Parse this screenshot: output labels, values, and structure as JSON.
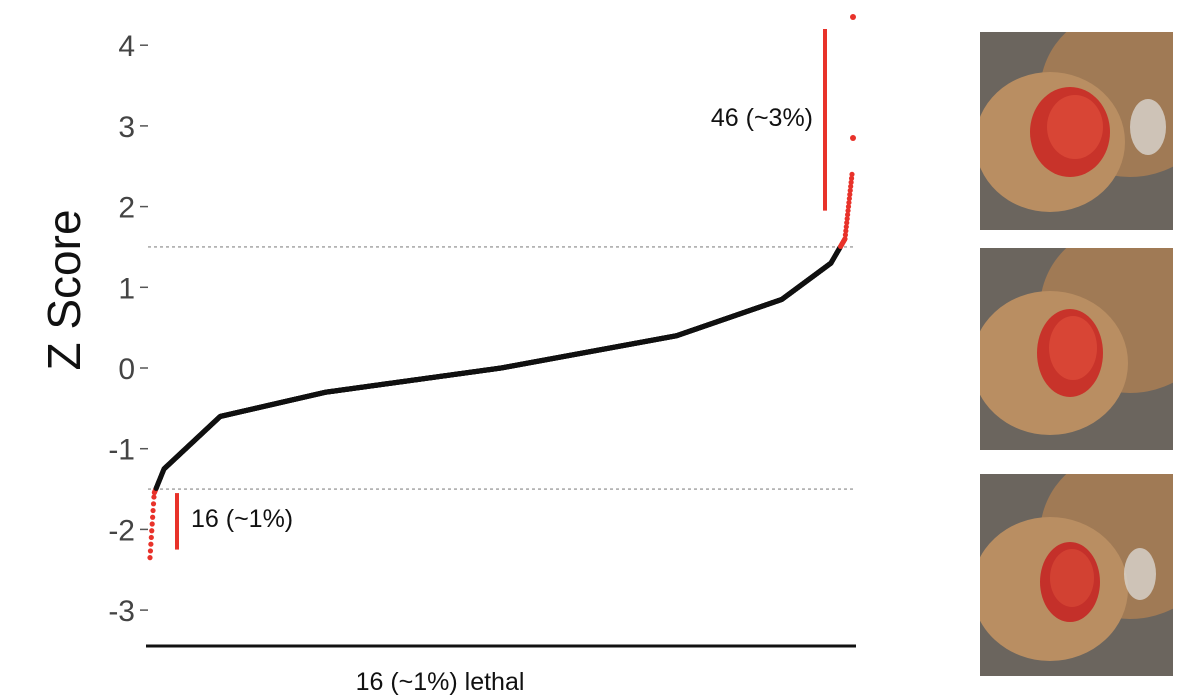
{
  "chart_data": {
    "type": "scatter",
    "title": "",
    "ylabel": "Z Score",
    "xlabel": "16 (~1%) lethal",
    "ylim": [
      -3.4,
      4.4
    ],
    "yticks": [
      -3,
      -2,
      -1,
      0,
      1,
      2,
      3,
      4
    ],
    "threshold_low": -1.5,
    "threshold_high": 1.5,
    "ranked_curve": {
      "n_points": 1600,
      "description_points": [
        {
          "rank_fraction": 0.0,
          "z": -2.35
        },
        {
          "rank_fraction": 0.006,
          "z": -1.55
        },
        {
          "rank_fraction": 0.02,
          "z": -1.25
        },
        {
          "rank_fraction": 0.1,
          "z": -0.6
        },
        {
          "rank_fraction": 0.25,
          "z": -0.3
        },
        {
          "rank_fraction": 0.5,
          "z": 0.0
        },
        {
          "rank_fraction": 0.75,
          "z": 0.4
        },
        {
          "rank_fraction": 0.9,
          "z": 0.85
        },
        {
          "rank_fraction": 0.97,
          "z": 1.3
        },
        {
          "rank_fraction": 0.99,
          "z": 1.6
        },
        {
          "rank_fraction": 1.0,
          "z": 2.4
        }
      ],
      "outliers_high": [
        2.85,
        4.35
      ],
      "base_color": "#111111",
      "highlight_color": "#e8322a"
    },
    "annotations": [
      {
        "label": "46 (~3%)",
        "z_from": 1.95,
        "z_to": 4.2
      },
      {
        "label": "16 (~1%)",
        "z_from": -2.25,
        "z_to": -1.55
      }
    ]
  },
  "images": [
    {
      "name": "fly-eye-photo-1"
    },
    {
      "name": "fly-eye-photo-2"
    },
    {
      "name": "fly-eye-photo-3"
    }
  ]
}
